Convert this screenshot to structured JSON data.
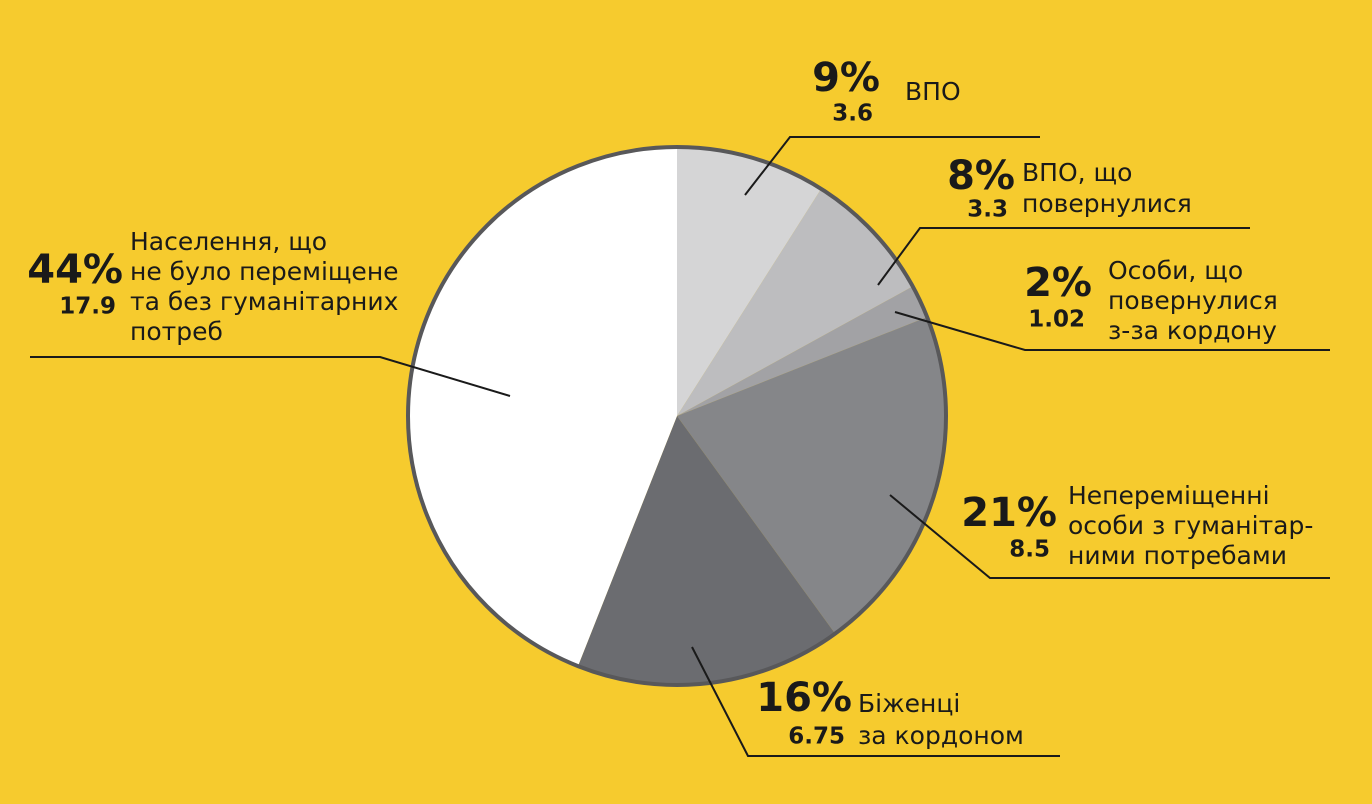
{
  "chart_data": {
    "type": "pie",
    "categories": [
      [
        "ВПО"
      ],
      [
        "ВПО, що",
        "повернулися"
      ],
      [
        "Особи, що",
        "повернулися",
        "з-за кордону"
      ],
      [
        "Непереміщенні",
        "особи з гуманітар-",
        "ними потребами"
      ],
      [
        "Біженці",
        "за кордоном"
      ],
      [
        "Населення, що",
        "не було переміщене",
        "та без гуманітарних",
        "потреб"
      ]
    ],
    "values": [
      9,
      8,
      2,
      21,
      16,
      44
    ],
    "value_labels": [
      "9%",
      "8%",
      "2%",
      "21%",
      "16%",
      "44%"
    ],
    "amounts": [
      3.6,
      3.3,
      1.02,
      8.5,
      6.75,
      17.9
    ],
    "colors": [
      "#d5d5d6",
      "#bdbdbf",
      "#a2a2a5",
      "#858689",
      "#6b6c70",
      "#ffffff"
    ]
  }
}
